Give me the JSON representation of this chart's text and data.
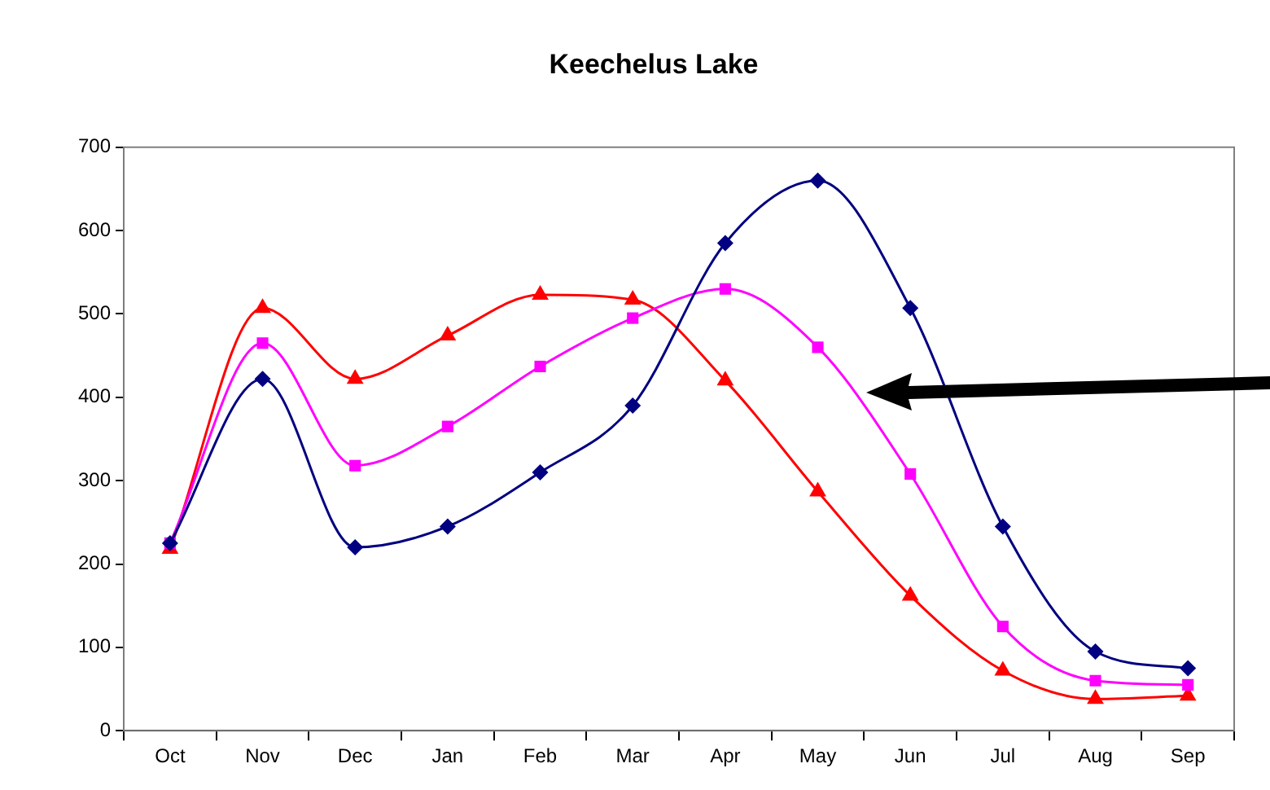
{
  "chart_data": {
    "type": "line",
    "title": "Keechelus Lake",
    "categories": [
      "Oct",
      "Nov",
      "Dec",
      "Jan",
      "Feb",
      "Mar",
      "Apr",
      "May",
      "Jun",
      "Jul",
      "Aug",
      "Sep"
    ],
    "series": [
      {
        "color": "#000080",
        "marker": "diamond",
        "values": [
          225,
          422,
          220,
          245,
          310,
          390,
          585,
          660,
          507,
          245,
          95,
          75
        ]
      },
      {
        "color": "#ff00ff",
        "marker": "square",
        "values": [
          225,
          465,
          318,
          365,
          437,
          495,
          530,
          460,
          308,
          125,
          60,
          55
        ]
      },
      {
        "color": "#ff0000",
        "marker": "triangle",
        "values": [
          218,
          507,
          422,
          474,
          523,
          517,
          420,
          287,
          162,
          72,
          38,
          42
        ]
      }
    ],
    "ylim": [
      0,
      700
    ],
    "yticks": [
      0,
      100,
      200,
      300,
      400,
      500,
      600,
      700
    ],
    "grid": false,
    "legend": false
  }
}
